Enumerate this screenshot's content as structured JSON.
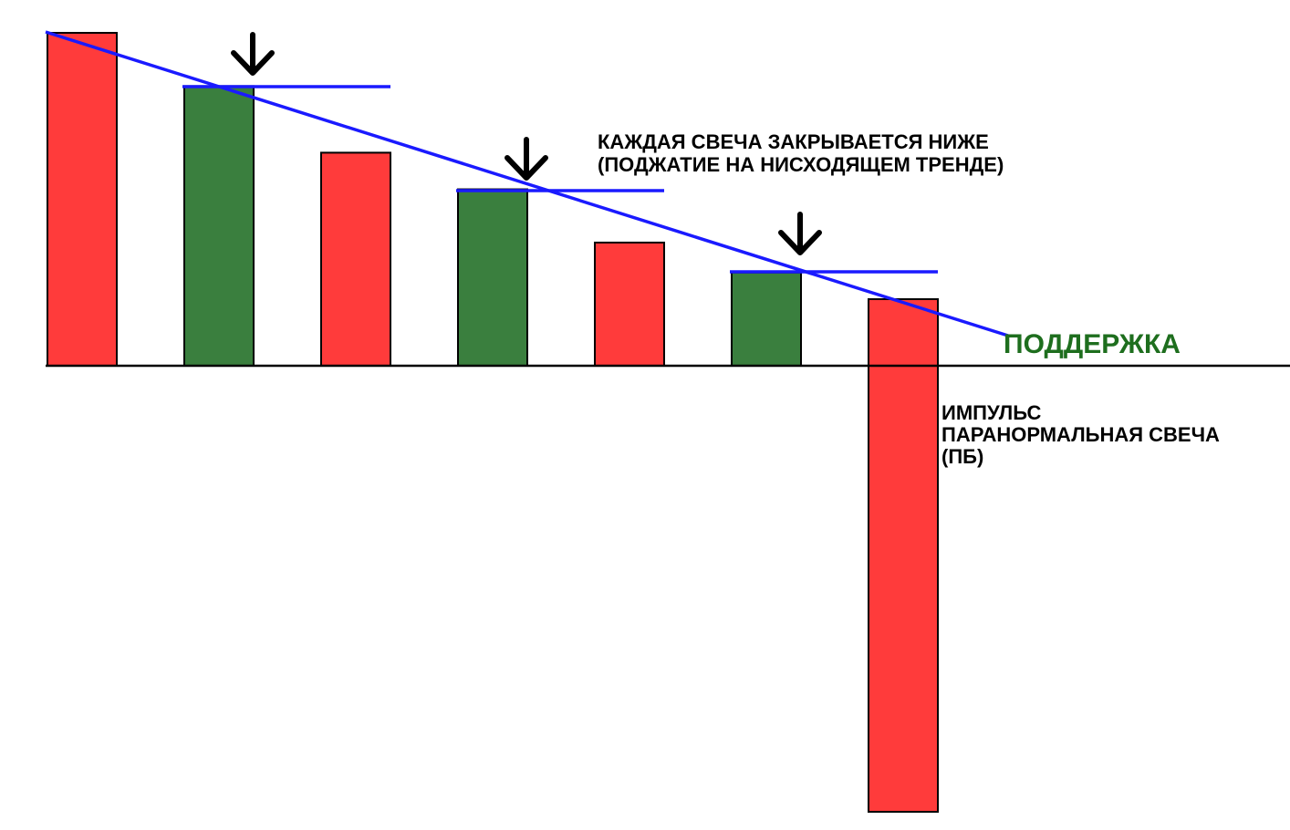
{
  "labels": {
    "note_line1": "КАЖДАЯ СВЕЧА ЗАКРЫВАЕТСЯ НИЖЕ",
    "note_line2": "(ПОДЖАТИЕ НА НИСХОДЯЩЕМ ТРЕНДЕ)",
    "support": "ПОДДЕРЖКА",
    "impulse_line1": "ИМПУЛЬС",
    "impulse_line2": "ПАРАНОРМАЛЬНАЯ СВЕЧА",
    "impulse_line3": "(ПБ)"
  },
  "candles": [
    {
      "type": "bearish",
      "level": 1.0
    },
    {
      "type": "bullish",
      "level": 0.84
    },
    {
      "type": "bearish",
      "level": 0.64
    },
    {
      "type": "bullish",
      "level": 0.53
    },
    {
      "type": "bearish",
      "level": 0.37
    },
    {
      "type": "bullish",
      "level": 0.28
    },
    {
      "type": "bearish",
      "level": 0.2,
      "breakdown_level": -1.34
    }
  ],
  "colors": {
    "bearish": "#ff3b3b",
    "bullish": "#3a7f3e",
    "trend_line": "#1a1aff",
    "support_text": "#1e6e1e",
    "outline": "#000000"
  },
  "icons": [
    "down-arrow-icon",
    "down-arrow-icon",
    "down-arrow-icon"
  ]
}
